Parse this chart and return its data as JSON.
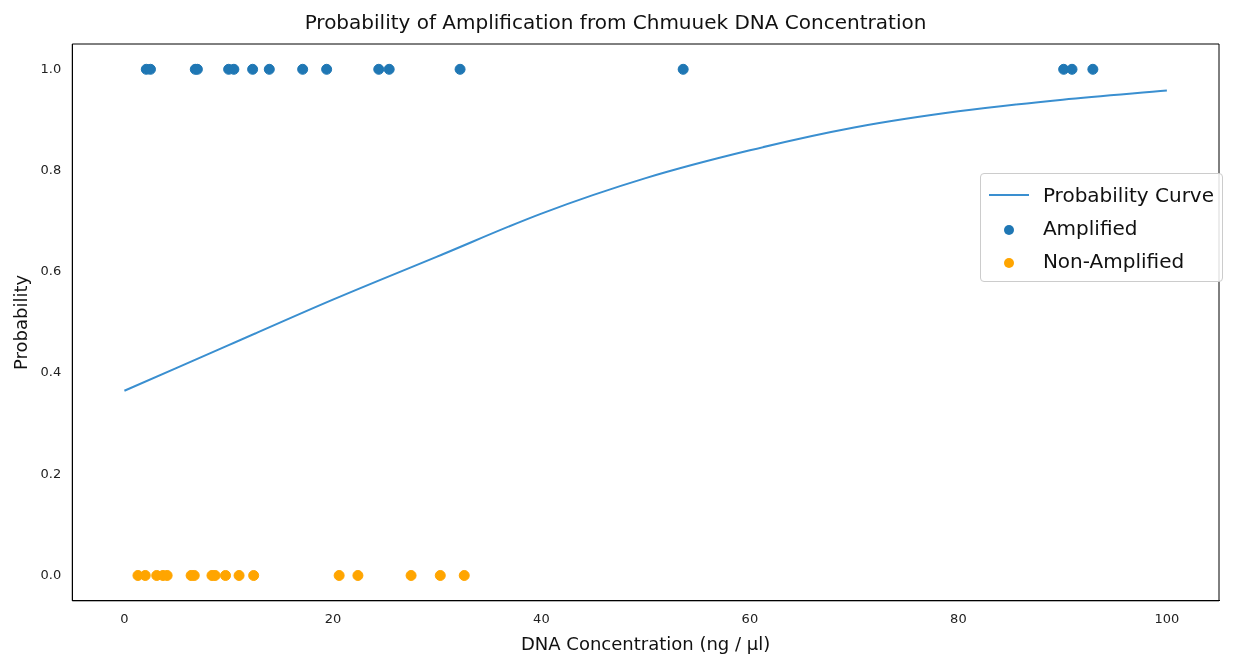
{
  "chart_data": {
    "type": "scatter",
    "title": "Probability of Amplification from Chmuuek DNA Concentration",
    "xlabel": "DNA Concentration (ng / μl)",
    "ylabel": "Probability",
    "xlim": [
      -5,
      105
    ],
    "xticks": [
      0,
      20,
      40,
      60,
      80,
      100
    ],
    "ylim": [
      -0.05,
      1.05
    ],
    "yticks": [
      {
        "value": 0,
        "label": "0.0"
      },
      {
        "value": 0.2,
        "label": "0.2"
      },
      {
        "value": 0.4,
        "label": "0.4"
      },
      {
        "value": 0.6,
        "label": "0.6"
      },
      {
        "value": 0.8,
        "label": "0.8"
      },
      {
        "value": 1,
        "label": "1.0"
      }
    ],
    "legend": "right",
    "grid": false,
    "series": [
      {
        "name": "Probability Curve",
        "type": "line",
        "color": "#3a8fd0",
        "x": [
          0,
          10,
          20,
          30,
          40,
          50,
          60,
          70,
          80,
          90,
          100
        ],
        "values": [
          0.365,
          0.455,
          0.545,
          0.63,
          0.715,
          0.785,
          0.84,
          0.885,
          0.917,
          0.94,
          0.958
        ],
        "marker": "none"
      },
      {
        "name": "Amplified",
        "marker": "circle",
        "color": "#1f77b4",
        "x": [
          2.1,
          2.5,
          6.8,
          7.0,
          10.0,
          10.5,
          12.3,
          13.9,
          17.1,
          19.4,
          24.4,
          25.4,
          32.2,
          53.6,
          90.1,
          90.9,
          92.9
        ],
        "values": [
          1,
          1,
          1,
          1,
          1,
          1,
          1,
          1,
          1,
          1,
          1,
          1,
          1,
          1,
          1,
          1,
          1
        ]
      },
      {
        "name": "Non-Amplified",
        "marker": "circle",
        "color": "#ffa500",
        "x": [
          1.3,
          2.0,
          3.1,
          3.7,
          4.1,
          6.4,
          6.7,
          8.4,
          8.7,
          9.7,
          11.0,
          12.4,
          20.6,
          22.4,
          27.5,
          30.3,
          32.6
        ],
        "values": [
          0,
          0,
          0,
          0,
          0,
          0,
          0,
          0,
          0,
          0,
          0,
          0,
          0,
          0,
          0,
          0,
          0
        ]
      }
    ]
  }
}
